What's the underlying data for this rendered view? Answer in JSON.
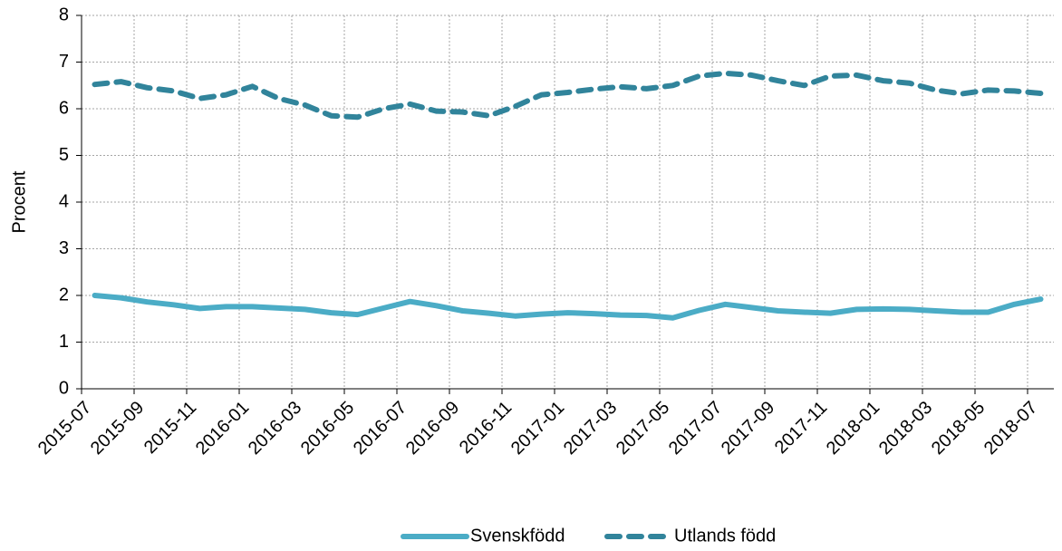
{
  "chart_data": {
    "type": "line",
    "y_label": "Procent",
    "categories": [
      "2015-07",
      null,
      "2015-09",
      null,
      "2015-11",
      null,
      "2016-01",
      null,
      "2016-03",
      null,
      "2016-05",
      null,
      "2016-07",
      null,
      "2016-09",
      null,
      "2016-11",
      null,
      "2017-01",
      null,
      "2017-03",
      null,
      "2017-05",
      null,
      "2017-07",
      null,
      "2017-09",
      null,
      "2017-11",
      null,
      "2018-01",
      null,
      "2018-03",
      null,
      "2018-05",
      null,
      "2018-07"
    ],
    "series": [
      {
        "name": "Svenskfödd",
        "color": "#4bacc6",
        "dash": false,
        "values": [
          2.0,
          1.95,
          1.86,
          1.8,
          1.72,
          1.76,
          1.76,
          1.73,
          1.7,
          1.63,
          1.59,
          1.73,
          1.87,
          1.78,
          1.67,
          1.62,
          1.56,
          1.6,
          1.63,
          1.61,
          1.58,
          1.57,
          1.52,
          1.68,
          1.81,
          1.74,
          1.67,
          1.64,
          1.62,
          1.7,
          1.71,
          1.7,
          1.67,
          1.64,
          1.64,
          1.81,
          1.92
        ]
      },
      {
        "name": "Utlands född",
        "color": "#31849b",
        "dash": true,
        "values": [
          6.52,
          6.58,
          6.45,
          6.38,
          6.22,
          6.3,
          6.48,
          6.22,
          6.08,
          5.85,
          5.82,
          6.0,
          6.1,
          5.95,
          5.93,
          5.85,
          6.05,
          6.3,
          6.35,
          6.42,
          6.47,
          6.43,
          6.5,
          6.7,
          6.76,
          6.72,
          6.6,
          6.5,
          6.7,
          6.72,
          6.6,
          6.55,
          6.4,
          6.32,
          6.4,
          6.38,
          6.33
        ]
      }
    ],
    "ylim": [
      0,
      8
    ],
    "yticks": [
      0,
      1,
      2,
      3,
      4,
      5,
      6,
      7,
      8
    ],
    "grid": true,
    "legend": "bottom"
  }
}
